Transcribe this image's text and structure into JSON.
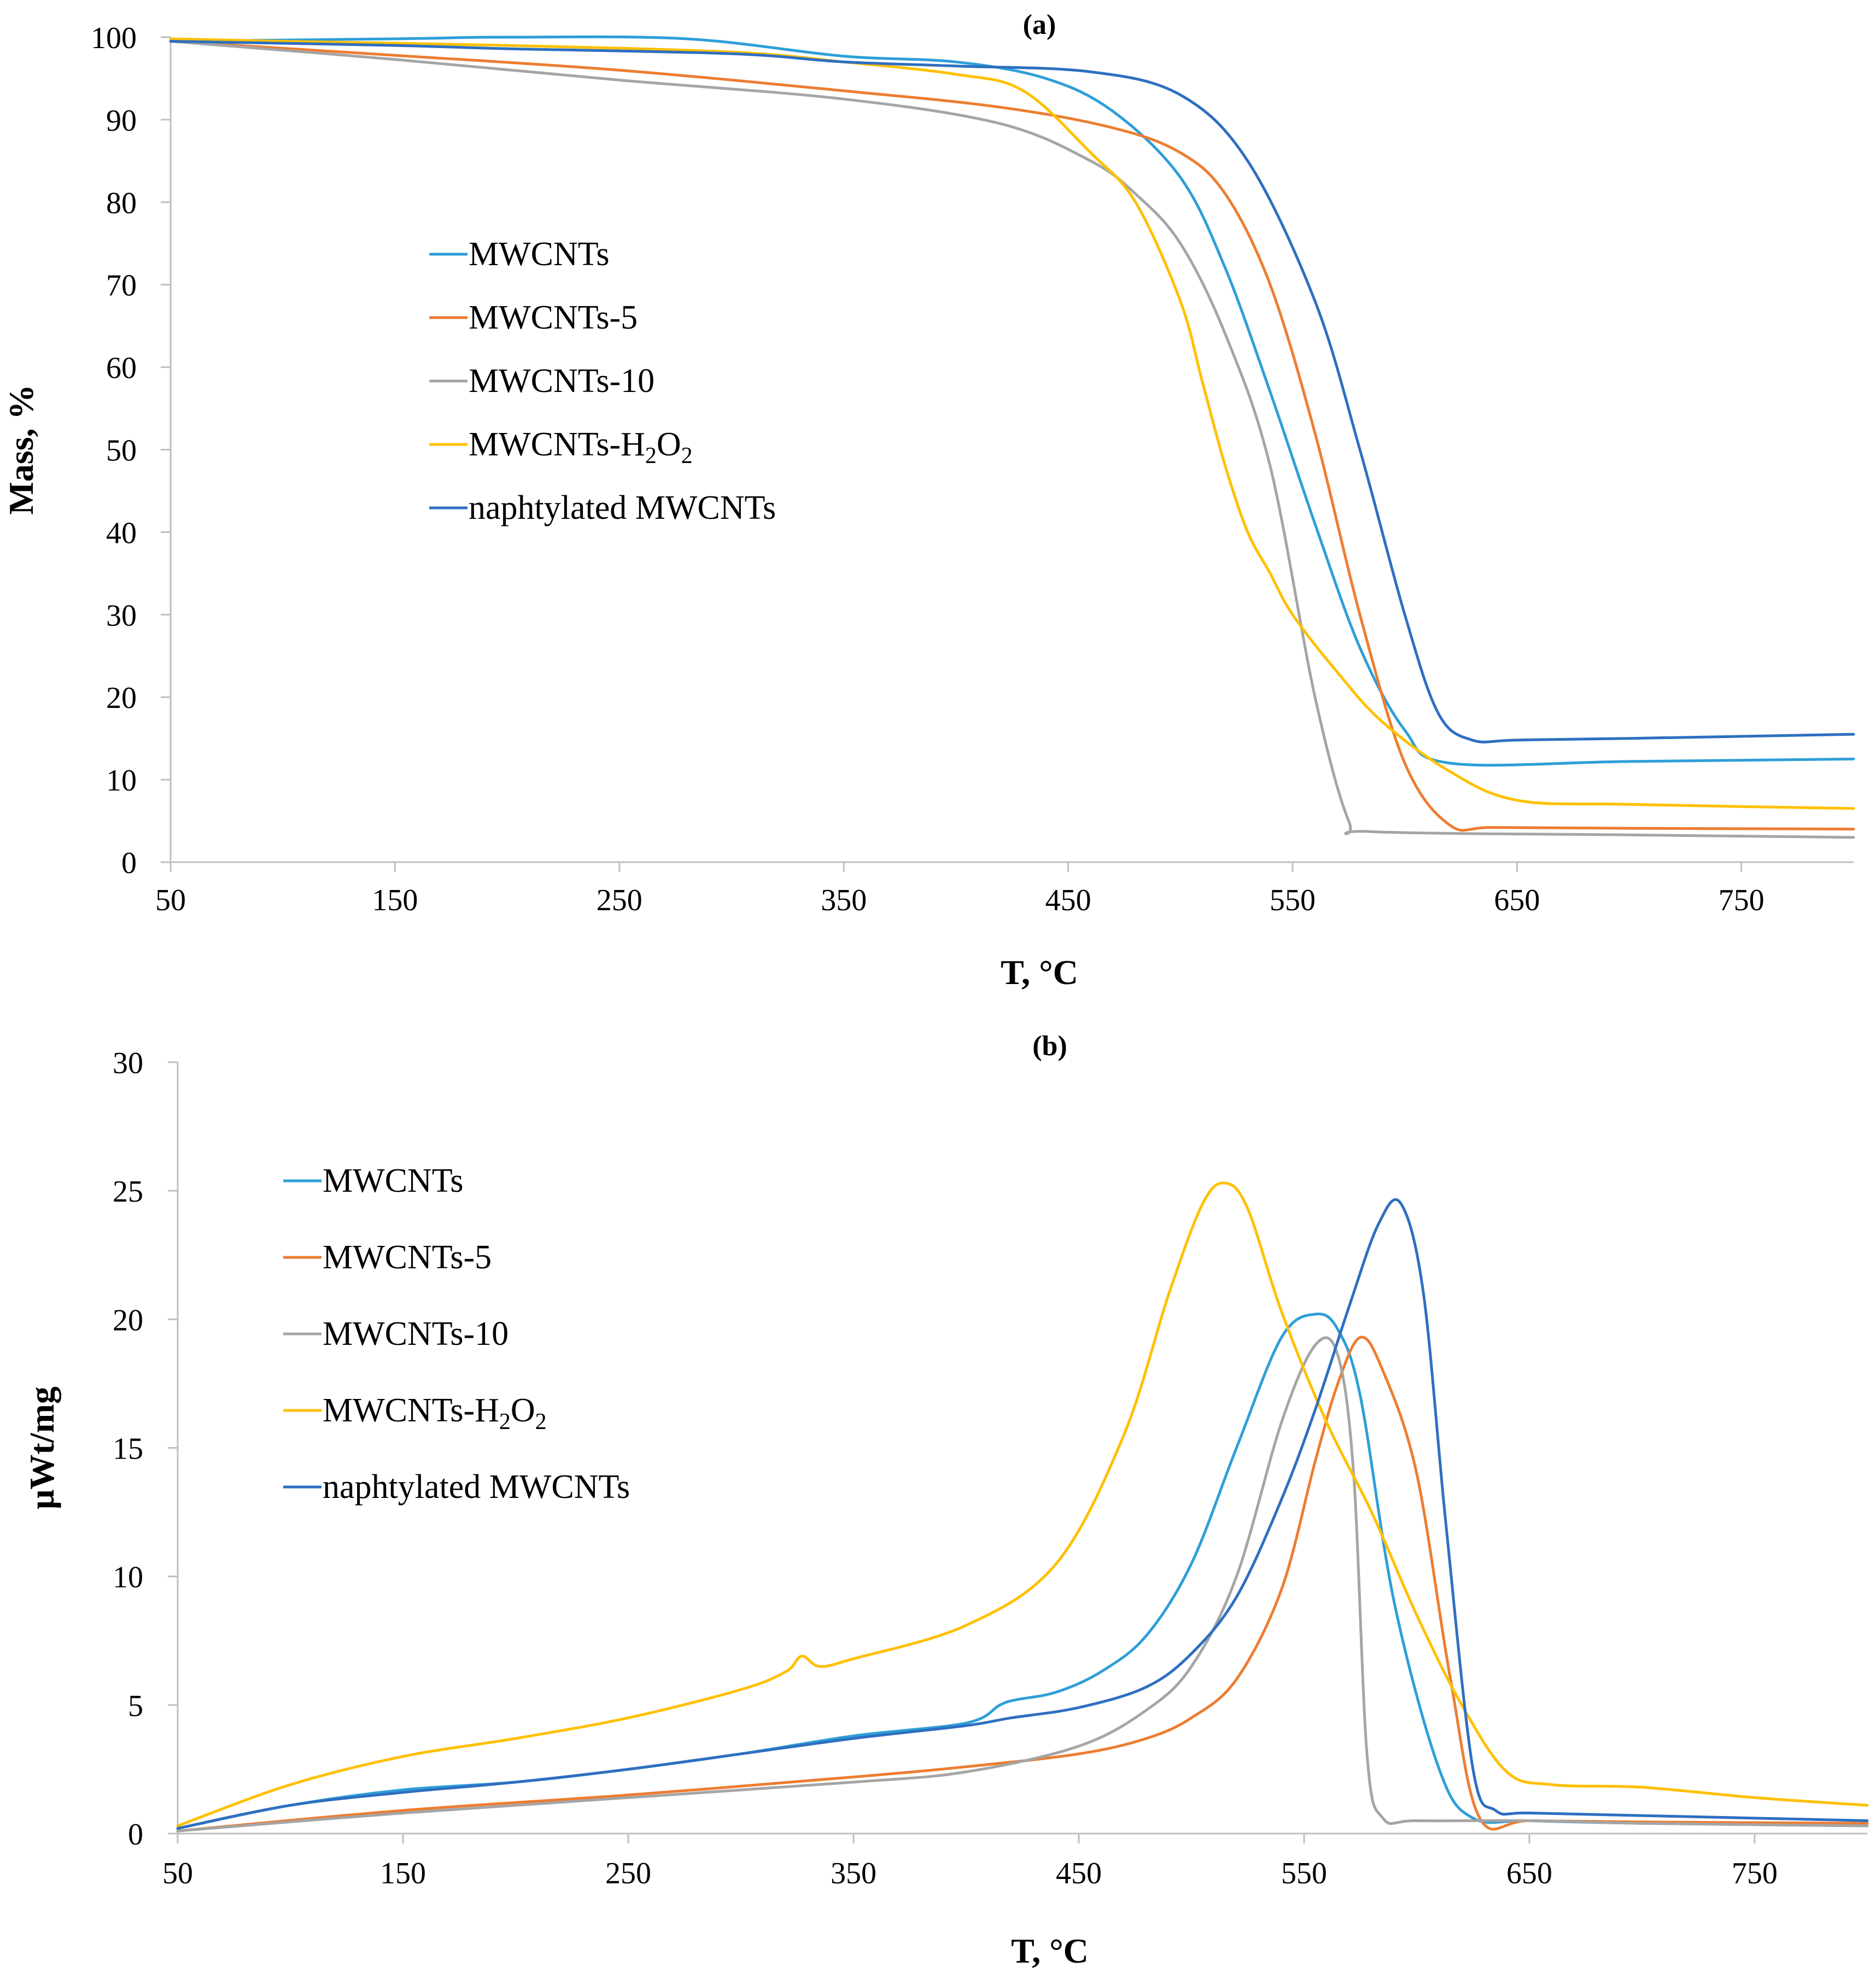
{
  "colors": {
    "MWCNTs": "#2E9FD8",
    "MWCNTs-5": "#ED7D31",
    "MWCNTs-10": "#A5A5A5",
    "MWCNTs-H2O2": "#FFC000",
    "naphtylated MWCNTs": "#2E6FC0"
  },
  "chart_data": [
    {
      "type": "line",
      "panel_label": "(a)",
      "title": "",
      "xlabel": "T, °C",
      "ylabel": "Mass, %",
      "xlim": [
        50,
        800
      ],
      "ylim": [
        0,
        100
      ],
      "x_ticks": [
        "50",
        "150",
        "250",
        "350",
        "450",
        "550",
        "650",
        "750"
      ],
      "y_ticks": [
        "0",
        "10",
        "20",
        "30",
        "40",
        "50",
        "60",
        "70",
        "80",
        "90",
        "100"
      ],
      "grid": false,
      "legend_position": "center-left",
      "legend": [
        {
          "main": "MWCNTs",
          "sub": []
        },
        {
          "main": "MWCNTs-5",
          "sub": []
        },
        {
          "main": "MWCNTs-10",
          "sub": []
        },
        {
          "main": "MWCNTs-H",
          "sub": [
            "2",
            "O",
            "2"
          ]
        },
        {
          "main": "naphtylated MWCNTs",
          "sub": []
        }
      ],
      "series": [
        {
          "name": "MWCNTs",
          "x": [
            50,
            150,
            200,
            280,
            350,
            400,
            440,
            470,
            500,
            520,
            540,
            560,
            580,
            600,
            620,
            700,
            800
          ],
          "y": [
            99.5,
            99.8,
            100,
            99.8,
            97.7,
            97,
            95,
            91,
            83,
            72,
            57,
            41,
            26,
            16,
            12,
            12.2,
            12.5
          ]
        },
        {
          "name": "MWCNTs-5",
          "x": [
            50,
            150,
            250,
            350,
            420,
            470,
            500,
            520,
            540,
            560,
            580,
            600,
            620,
            640,
            700,
            800
          ],
          "y": [
            99.5,
            97.8,
            96,
            93.5,
            91.5,
            89,
            86,
            81,
            70,
            52,
            30,
            12,
            4.5,
            4.2,
            4.1,
            4
          ]
        },
        {
          "name": "MWCNTs-10",
          "x": [
            50,
            150,
            250,
            350,
            420,
            460,
            480,
            500,
            520,
            540,
            560,
            575,
            585,
            700,
            800
          ],
          "y": [
            99.5,
            97.3,
            94.8,
            92.5,
            89.5,
            85,
            81,
            75,
            64,
            48,
            20,
            5,
            3.7,
            3.3,
            3
          ]
        },
        {
          "name": "MWCNTs-H2O2",
          "x": [
            50,
            100,
            200,
            300,
            350,
            400,
            430,
            460,
            480,
            500,
            510,
            520,
            530,
            540,
            550,
            570,
            590,
            620,
            650,
            700,
            800
          ],
          "y": [
            99.8,
            99.5,
            99,
            98.2,
            97,
            95.5,
            93.5,
            86,
            80,
            68,
            58,
            48,
            40,
            35,
            30,
            23,
            17,
            11,
            7.5,
            7,
            6.5
          ]
        },
        {
          "name": "naphtylated MWCNTs",
          "x": [
            50,
            150,
            200,
            300,
            350,
            400,
            460,
            500,
            530,
            560,
            580,
            600,
            615,
            630,
            650,
            700,
            800
          ],
          "y": [
            99.5,
            99,
            98.6,
            98,
            97,
            96.5,
            95.8,
            93,
            85,
            68,
            50,
            30,
            18,
            14.8,
            14.8,
            15,
            15.5
          ]
        }
      ]
    },
    {
      "type": "line",
      "panel_label": "(b)",
      "title": "",
      "xlabel": "T, °C",
      "ylabel": "μWt/mg",
      "xlim": [
        50,
        800
      ],
      "ylim": [
        0,
        30
      ],
      "x_ticks": [
        "50",
        "150",
        "250",
        "350",
        "450",
        "550",
        "650",
        "750"
      ],
      "y_ticks": [
        "0",
        "5",
        "10",
        "15",
        "20",
        "25",
        "30"
      ],
      "grid": false,
      "legend_position": "center-left",
      "legend": [
        {
          "main": "MWCNTs",
          "sub": []
        },
        {
          "main": "MWCNTs-5",
          "sub": []
        },
        {
          "main": "MWCNTs-10",
          "sub": []
        },
        {
          "main": "MWCNTs-H",
          "sub": [
            "2",
            "O",
            "2"
          ]
        },
        {
          "main": "naphtylated MWCNTs",
          "sub": []
        }
      ],
      "series": [
        {
          "name": "MWCNTs",
          "x": [
            50,
            100,
            150,
            200,
            250,
            300,
            350,
            400,
            415,
            422,
            440,
            460,
            480,
            500,
            520,
            540,
            555,
            565,
            575,
            590,
            610,
            625,
            650,
            700,
            800
          ],
          "y": [
            0.2,
            1.1,
            1.7,
            2,
            2.5,
            3.1,
            3.8,
            4.3,
            5,
            5.2,
            5.5,
            6.3,
            7.7,
            10.5,
            15,
            19.3,
            20.2,
            19.6,
            17,
            9,
            2.5,
            0.6,
            0.5,
            0.4,
            0.3
          ]
        },
        {
          "name": "MWCNTs-5",
          "x": [
            50,
            150,
            250,
            350,
            400,
            450,
            480,
            500,
            520,
            540,
            555,
            565,
            575,
            585,
            600,
            615,
            628,
            650,
            700,
            800
          ],
          "y": [
            0.1,
            0.9,
            1.5,
            2.2,
            2.6,
            3.1,
            3.7,
            4.5,
            6,
            9.5,
            14.5,
            17.5,
            19.3,
            18,
            14,
            6,
            0.6,
            0.5,
            0.45,
            0.4
          ]
        },
        {
          "name": "MWCNTs-10",
          "x": [
            50,
            150,
            250,
            350,
            400,
            450,
            480,
            500,
            520,
            540,
            555,
            565,
            572,
            578,
            585,
            600,
            650,
            700,
            800
          ],
          "y": [
            0.1,
            0.8,
            1.4,
            2,
            2.4,
            3.4,
            4.8,
            6.5,
            10,
            16,
            19,
            18.6,
            14,
            3,
            0.6,
            0.5,
            0.5,
            0.4,
            0.3
          ]
        },
        {
          "name": "MWCNTs-H2O2",
          "x": [
            50,
            100,
            150,
            200,
            250,
            300,
            320,
            327,
            335,
            350,
            400,
            440,
            470,
            490,
            505,
            515,
            525,
            540,
            560,
            580,
            600,
            620,
            640,
            660,
            700,
            750,
            800
          ],
          "y": [
            0.3,
            1.9,
            3,
            3.7,
            4.5,
            5.6,
            6.3,
            6.9,
            6.5,
            6.8,
            8.1,
            10.5,
            15.5,
            21,
            24.5,
            25.3,
            24.3,
            20.3,
            16,
            12.5,
            8.5,
            5,
            2.4,
            1.9,
            1.8,
            1.4,
            1.1
          ]
        },
        {
          "name": "naphtylated MWCNTs",
          "x": [
            50,
            100,
            150,
            200,
            250,
            300,
            350,
            400,
            420,
            450,
            480,
            500,
            520,
            540,
            555,
            570,
            583,
            593,
            603,
            613,
            625,
            635,
            650,
            700,
            800
          ],
          "y": [
            0.2,
            1.1,
            1.6,
            2,
            2.5,
            3.1,
            3.7,
            4.2,
            4.5,
            4.9,
            5.7,
            7,
            9.2,
            13,
            16.5,
            20.5,
            23.7,
            24.5,
            21,
            12,
            2.5,
            0.9,
            0.8,
            0.7,
            0.5
          ]
        }
      ]
    }
  ]
}
